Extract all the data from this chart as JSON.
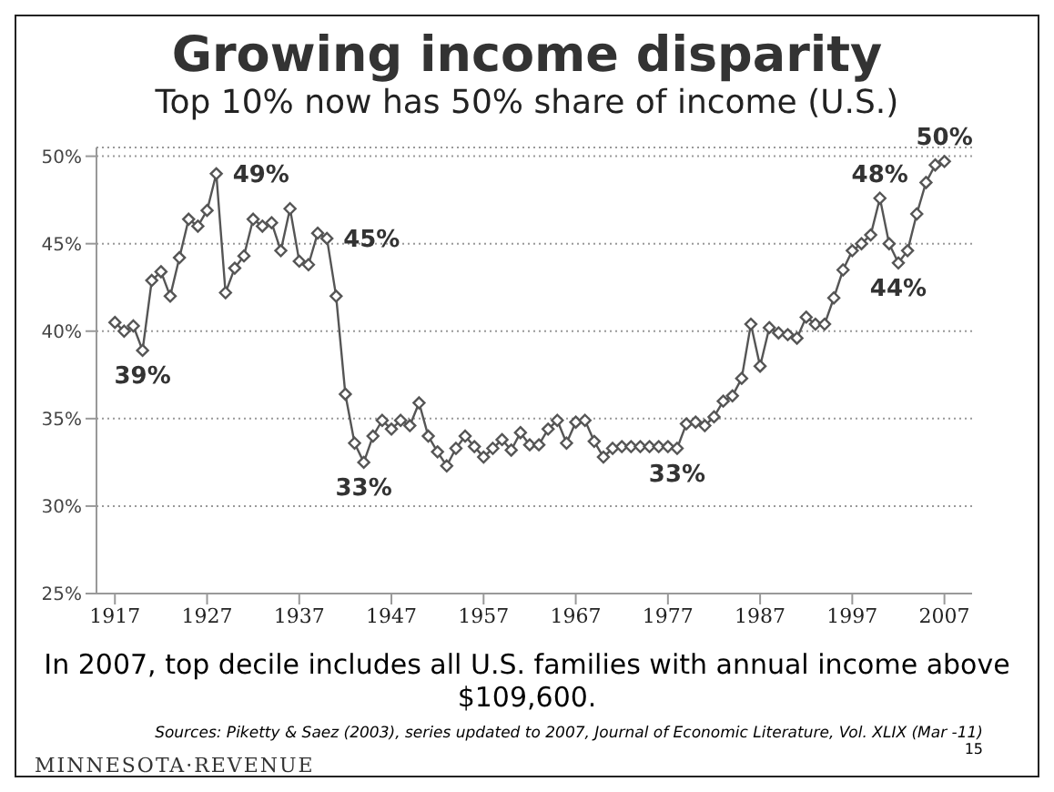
{
  "chart_data": {
    "type": "line",
    "title": "Growing income disparity",
    "subtitle": "Top 10% now has 50% share of income (U.S.)",
    "x": [
      1917,
      1918,
      1919,
      1920,
      1921,
      1922,
      1923,
      1924,
      1925,
      1926,
      1927,
      1928,
      1929,
      1930,
      1931,
      1932,
      1933,
      1934,
      1935,
      1936,
      1937,
      1938,
      1939,
      1940,
      1941,
      1942,
      1943,
      1944,
      1945,
      1946,
      1947,
      1948,
      1949,
      1950,
      1951,
      1952,
      1953,
      1954,
      1955,
      1956,
      1957,
      1958,
      1959,
      1960,
      1961,
      1962,
      1963,
      1964,
      1965,
      1966,
      1967,
      1968,
      1969,
      1970,
      1971,
      1972,
      1973,
      1974,
      1975,
      1976,
      1977,
      1978,
      1979,
      1980,
      1981,
      1982,
      1983,
      1984,
      1985,
      1986,
      1987,
      1988,
      1989,
      1990,
      1991,
      1992,
      1993,
      1994,
      1995,
      1996,
      1997,
      1998,
      1999,
      2000,
      2001,
      2002,
      2003,
      2004,
      2005,
      2006,
      2007
    ],
    "series": [
      {
        "color": "#555555",
        "values": [
          40.5,
          40.0,
          40.3,
          38.9,
          42.9,
          43.4,
          42.0,
          44.2,
          46.4,
          46.0,
          46.9,
          49.0,
          42.2,
          43.6,
          44.3,
          46.4,
          46.0,
          46.2,
          44.6,
          47.0,
          44.0,
          43.8,
          45.6,
          45.3,
          42.0,
          36.4,
          33.6,
          32.5,
          34.0,
          34.9,
          34.4,
          34.9,
          34.6,
          35.9,
          34.0,
          33.1,
          32.3,
          33.3,
          34.0,
          33.4,
          32.8,
          33.3,
          33.8,
          33.2,
          34.2,
          33.5,
          33.5,
          34.4,
          34.9,
          33.6,
          34.8,
          34.9,
          33.7,
          32.8,
          33.3,
          33.4,
          33.4,
          33.4,
          33.4,
          33.4,
          33.4,
          33.3,
          34.7,
          34.8,
          34.6,
          35.1,
          36.0,
          36.3,
          37.3,
          40.4,
          38.0,
          40.2,
          39.9,
          39.8,
          39.6,
          40.8,
          40.4,
          40.4,
          41.9,
          43.5,
          44.6,
          45.0,
          45.5,
          47.6,
          45.0,
          43.9,
          44.6,
          46.7,
          48.5,
          49.5,
          49.7
        ]
      }
    ],
    "xlim": [
      1915,
      2010
    ],
    "xticks": [
      1917,
      1927,
      1937,
      1947,
      1957,
      1967,
      1977,
      1987,
      1997,
      2007
    ],
    "ylim": [
      25,
      50.5
    ],
    "yticks": [
      {
        "value": 25,
        "label": "25%"
      },
      {
        "value": 30,
        "label": "30%"
      },
      {
        "value": 35,
        "label": "35%"
      },
      {
        "value": 40,
        "label": "40%"
      },
      {
        "value": 45,
        "label": "45%"
      },
      {
        "value": 50,
        "label": "50%"
      }
    ],
    "grid": "y",
    "marker": "diamond",
    "line_style": "solid",
    "legend": false,
    "annotations": [
      {
        "text": "39%",
        "x": 1920,
        "y": 38.9
      },
      {
        "text": "49%",
        "x": 1928,
        "y": 49.0
      },
      {
        "text": "45%",
        "x": 1940,
        "y": 45.3
      },
      {
        "text": "33%",
        "x": 1944,
        "y": 32.5
      },
      {
        "text": "33%",
        "x": 1978,
        "y": 33.3
      },
      {
        "text": "48%",
        "x": 2000,
        "y": 47.6
      },
      {
        "text": "44%",
        "x": 2002,
        "y": 43.9
      },
      {
        "text": "50%",
        "x": 2007,
        "y": 49.7
      },
      "In 2007, top decile includes all U.S. families with annual income above $109,600.",
      "Sources: Piketty & Saez (2003), series updated to 2007, Journal of Economic Literature, Vol. XLIX (Mar -11)",
      "MINNESOTA·REVENUE",
      "15"
    ]
  }
}
